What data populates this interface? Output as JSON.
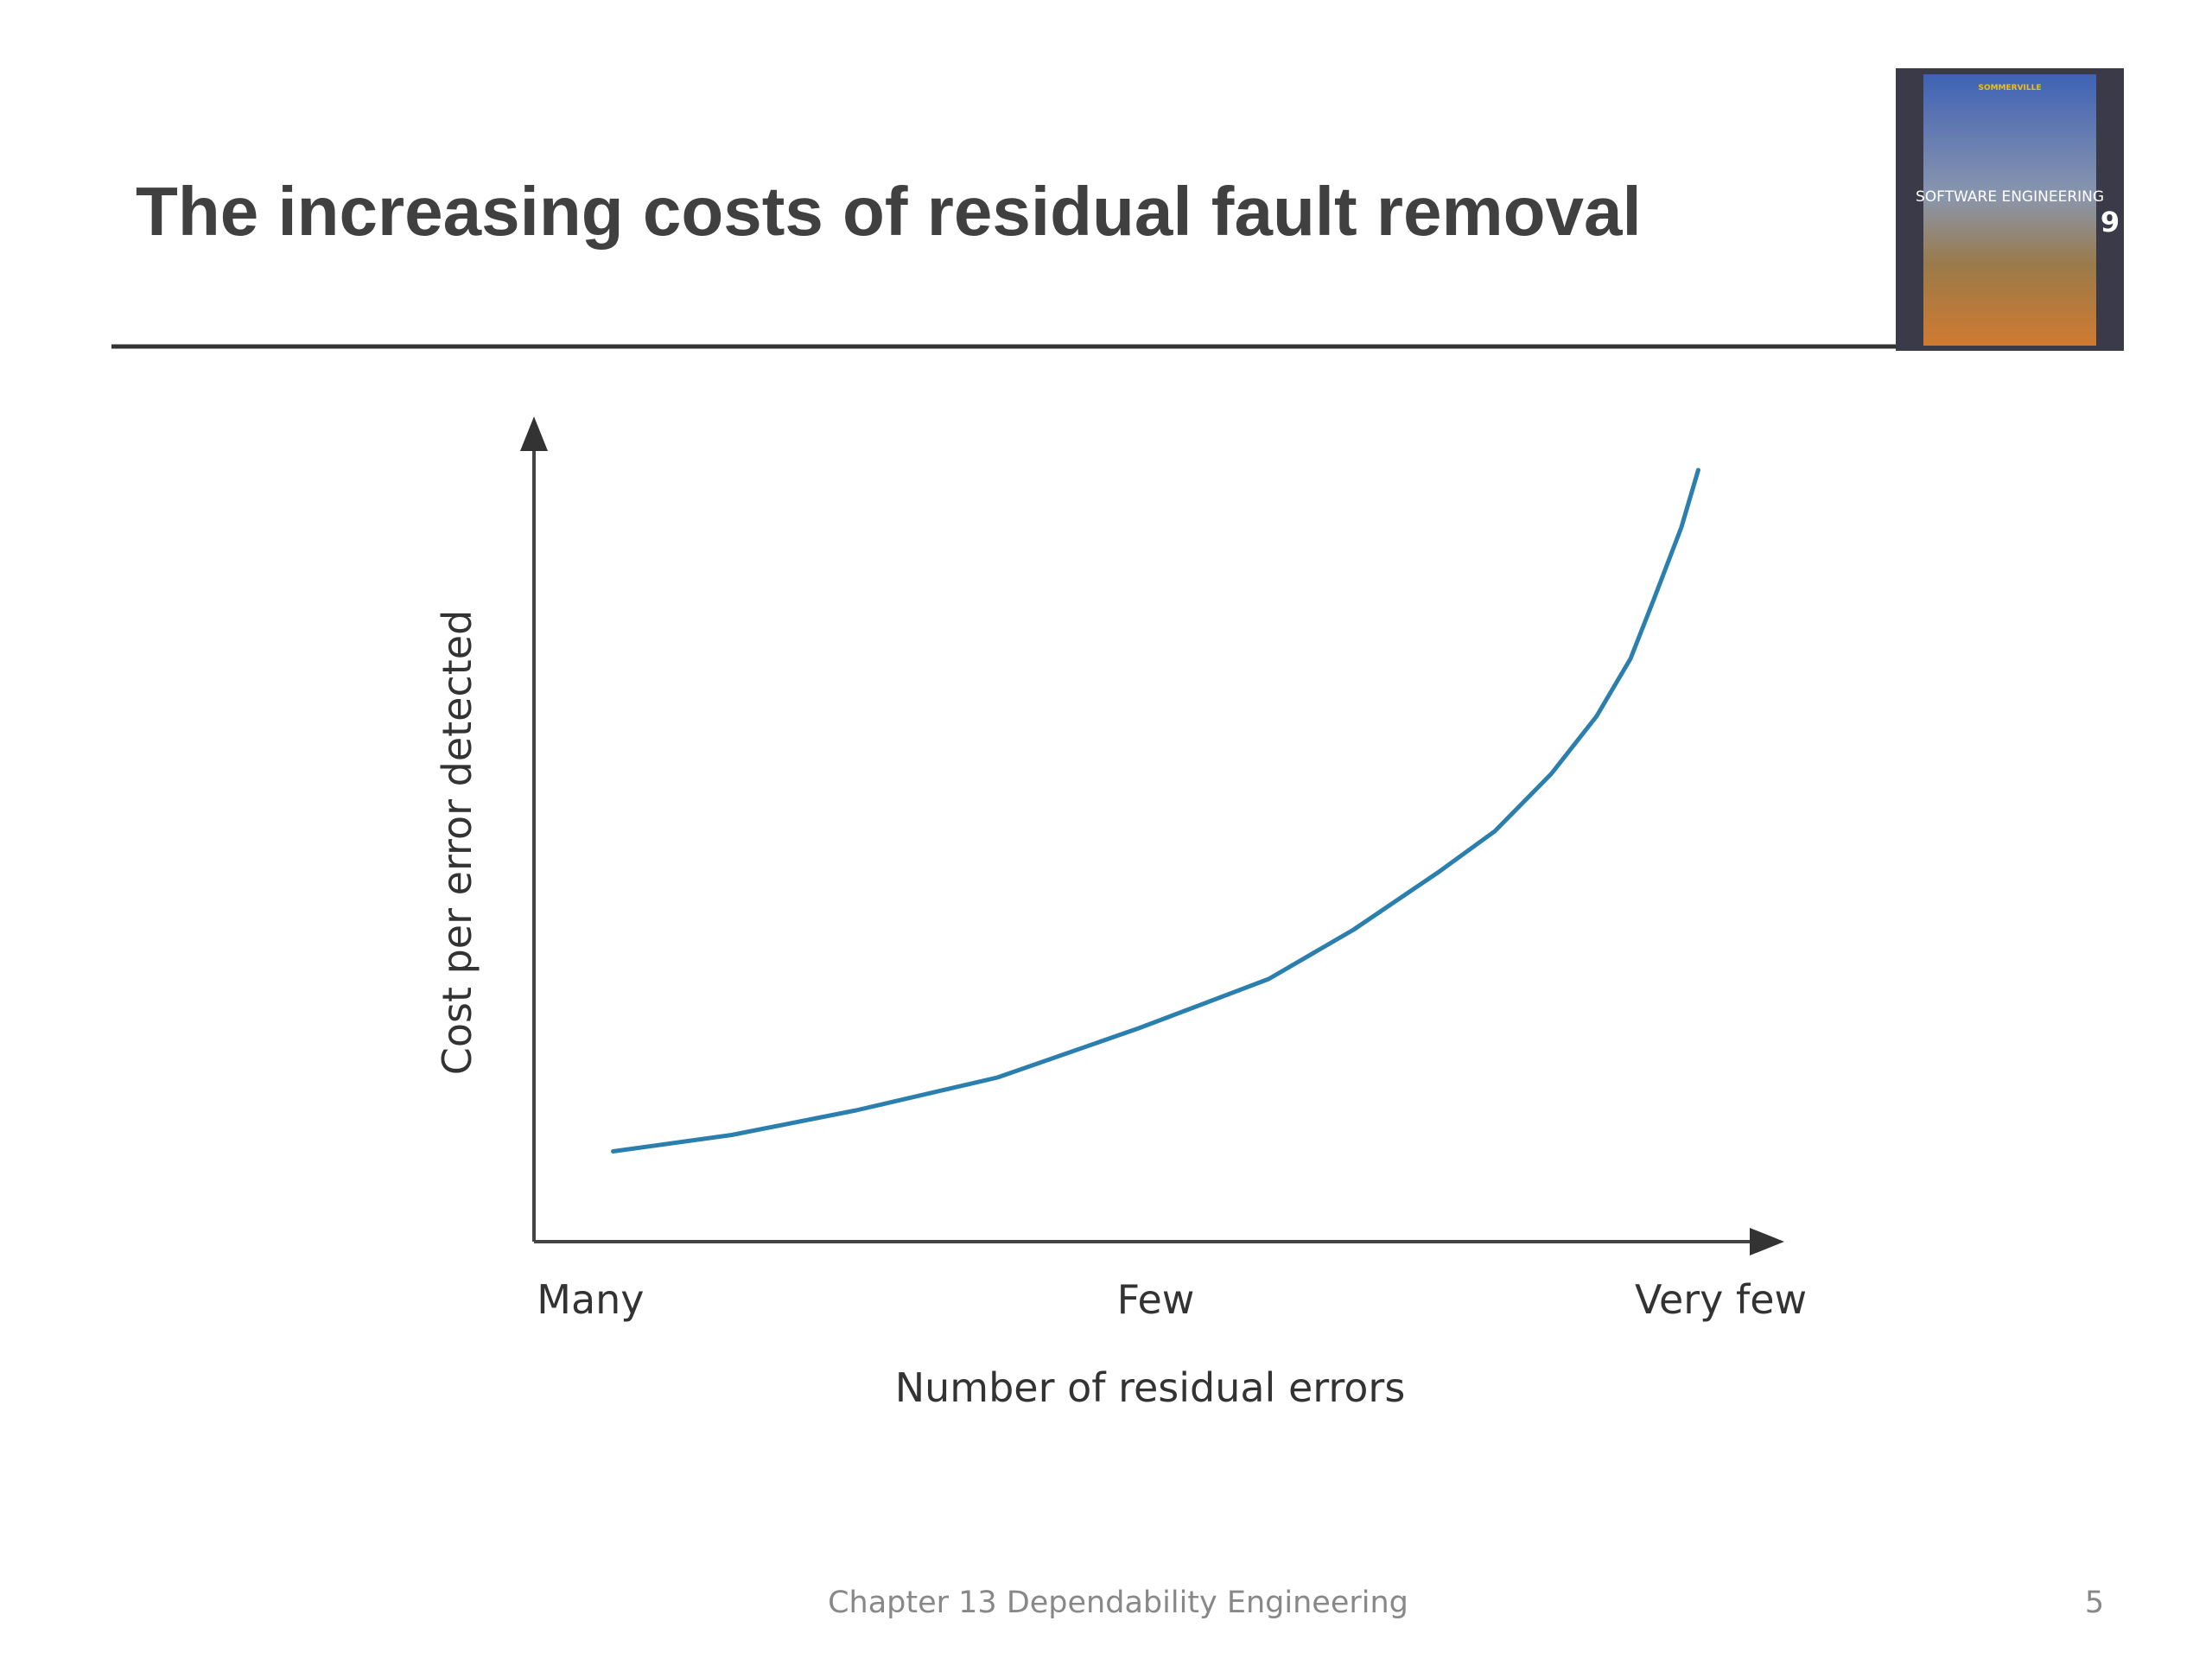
{
  "slide": {
    "title": "The increasing costs of residual fault removal",
    "footer": "Chapter 13 Dependability Engineering",
    "page": "5"
  },
  "cover": {
    "author": "SOMMERVILLE",
    "title": "SOFTWARE ENGINEERING",
    "edition": "9"
  },
  "chart_data": {
    "type": "line",
    "x_label": "Number of residual errors",
    "y_label": "Cost per error detected",
    "x": [
      0.04,
      0.25,
      0.47,
      0.72,
      0.97,
      1.2,
      1.35,
      1.5,
      1.6,
      1.7,
      1.78,
      1.84,
      1.88,
      1.93,
      1.96
    ],
    "series": [
      {
        "color": "#2a7fae",
        "values": [
          11,
          13,
          16,
          20,
          26,
          32,
          38,
          45,
          50,
          57,
          64,
          71,
          78,
          87,
          94
        ]
      }
    ],
    "xlim": [
      -0.1,
      2.1
    ],
    "ylim": [
      0,
      100
    ],
    "xticks": [
      {
        "value": 0,
        "label": "Many"
      },
      {
        "value": 1,
        "label": "Few"
      },
      {
        "value": 2,
        "label": "Very few"
      }
    ],
    "grid": false
  }
}
